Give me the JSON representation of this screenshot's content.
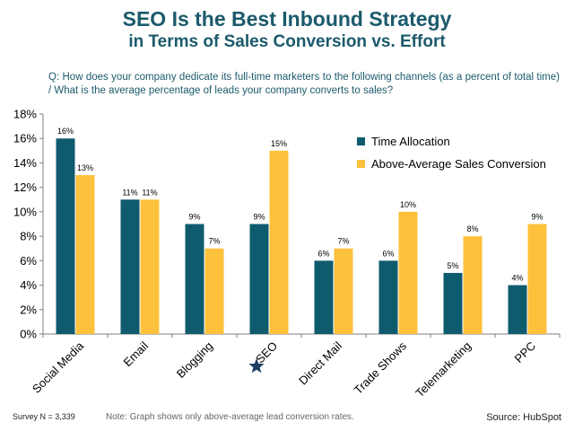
{
  "header": {
    "title_line1": "SEO Is the Best Inbound Strategy",
    "title_line2": "in Terms of Sales Conversion vs. Effort"
  },
  "question": "Q: How does your company dedicate its full-time marketers to the following channels (as a percent of total time) / What is the average percentage of leads your company converts to sales?",
  "footer": {
    "survey": "Survey N = 3,339",
    "note": "Note: Graph shows only above-average lead conversion rates.",
    "source": "Source: HubSpot"
  },
  "colors": {
    "series1": "#0f5b6e",
    "series2": "#fdc13c",
    "title": "#1b5a6b",
    "star": "#1c3d63"
  },
  "chart_data": {
    "type": "bar",
    "categories": [
      "Social Media",
      "Email",
      "Blogging",
      "SEO",
      "Direct Mail",
      "Trade Shows",
      "Telemarketing",
      "PPC"
    ],
    "highlight_category": "SEO",
    "highlight_marker": "star-icon",
    "series": [
      {
        "name": "Time Allocation",
        "values": [
          16,
          11,
          9,
          9,
          6,
          6,
          5,
          4
        ]
      },
      {
        "name": "Above-Average Sales Conversion",
        "values": [
          13,
          11,
          7,
          15,
          7,
          10,
          8,
          9
        ]
      }
    ],
    "data_labels": [
      [
        "16%",
        "11%",
        "9%",
        "9%",
        "6%",
        "6%",
        "5%",
        "4%"
      ],
      [
        "13%",
        "11%",
        "7%",
        "15%",
        "7%",
        "10%",
        "8%",
        "9%"
      ]
    ],
    "yticks": [
      "0%",
      "2%",
      "4%",
      "6%",
      "8%",
      "10%",
      "12%",
      "14%",
      "16%",
      "18%"
    ],
    "ylim": [
      0,
      18
    ],
    "ystep": 2,
    "grid": false,
    "legend_position": "top-right"
  }
}
